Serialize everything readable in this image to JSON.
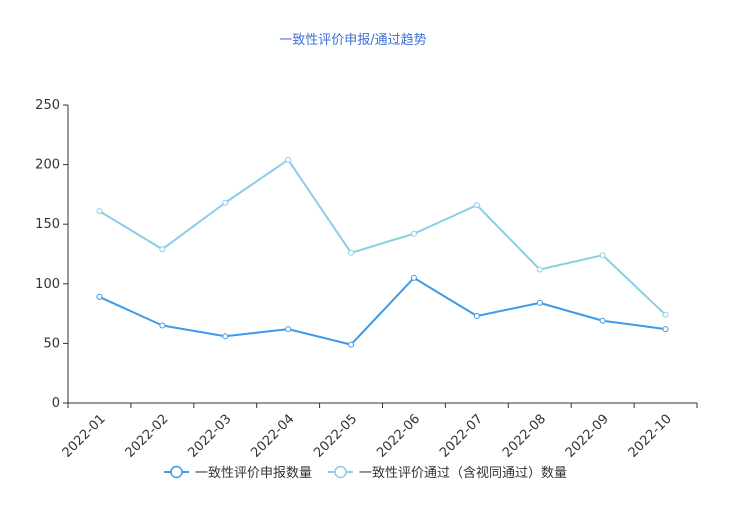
{
  "chart_data": {
    "type": "line",
    "title": "一致性评价申报/通过趋势",
    "categories": [
      "2022-01",
      "2022-02",
      "2022-03",
      "2022-04",
      "2022-05",
      "2022-06",
      "2022-07",
      "2022-08",
      "2022-09",
      "2022-10"
    ],
    "ylim": [
      0,
      250
    ],
    "yticks": [
      0,
      50,
      100,
      150,
      200,
      250
    ],
    "grid": false,
    "legend_position": "bottom",
    "series": [
      {
        "name": "一致性评价申报数量",
        "color": "#3d9be9",
        "values": [
          89,
          65,
          56,
          62,
          49,
          105,
          73,
          84,
          69,
          62
        ]
      },
      {
        "name": "一致性评价通过（含视同通过）数量",
        "color": "#88cfe6",
        "values": [
          161,
          129,
          168,
          204,
          126,
          142,
          166,
          112,
          124,
          74
        ]
      }
    ]
  },
  "colors": {
    "title": "#3c6fd1",
    "axis": "#333333"
  }
}
